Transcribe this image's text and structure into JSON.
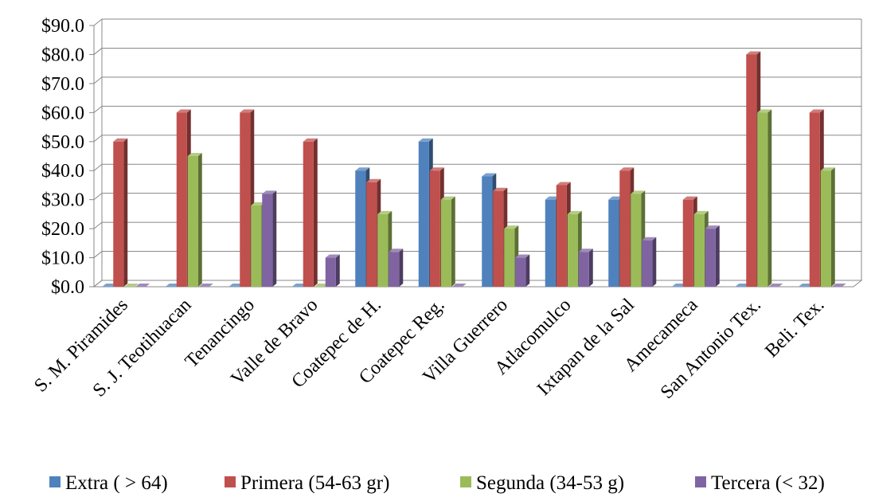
{
  "chart_data": {
    "type": "bar",
    "title": "",
    "xlabel": "",
    "ylabel": "",
    "ylim": [
      0,
      90
    ],
    "yticks": [
      "$0.0",
      "$10.0",
      "$20.0",
      "$30.0",
      "$40.0",
      "$50.0",
      "$60.0",
      "$70.0",
      "$80.0",
      "$90.0"
    ],
    "grid": true,
    "legend_position": "bottom",
    "categories": [
      "S. M. Piramides",
      "S. J. Teotihuacan",
      "Tenancingo",
      "Valle de Bravo",
      "Coatepec de H.",
      "Coatepec Reg.",
      "Villa Guerrero",
      "Atlacomulco",
      "Ixtapan de la Sal",
      "Amecameca",
      "San Antonio Tex.",
      "Beli. Tex."
    ],
    "series": [
      {
        "name": "Extra ( > 64)",
        "color": "#4F81BD",
        "values": [
          0,
          0,
          0,
          0,
          40,
          50,
          38,
          30,
          30,
          0,
          0,
          0
        ]
      },
      {
        "name": "Primera (54-63 gr)",
        "color": "#C0504D",
        "values": [
          50,
          60,
          60,
          50,
          36,
          40,
          33,
          35,
          40,
          30,
          80,
          60
        ]
      },
      {
        "name": "Segunda (34-53 g)",
        "color": "#9BBB59",
        "values": [
          0,
          45,
          28,
          0,
          25,
          30,
          20,
          25,
          32,
          25,
          60,
          40
        ]
      },
      {
        "name": "Tercera (< 32)",
        "color": "#8064A2",
        "values": [
          0,
          0,
          32,
          10,
          12,
          0,
          10,
          12,
          16,
          20,
          0,
          0
        ]
      }
    ]
  }
}
